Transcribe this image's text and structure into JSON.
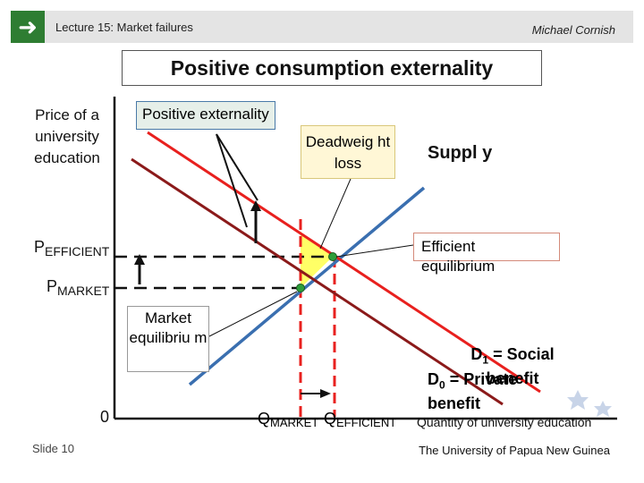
{
  "header": {
    "arrow_icon": "right-arrow-icon",
    "lecture": "Lecture 15:  Market failures",
    "author": "Michael Cornish"
  },
  "slide_title": "Positive consumption externality",
  "diagram": {
    "y_axis_label": "Price of a university education",
    "x_axis_label": "Quantity of university education",
    "origin_label": "0",
    "p_efficient": {
      "main": "P",
      "sub": "EFFICIENT"
    },
    "p_market": {
      "main": "P",
      "sub": "MARKET"
    },
    "q_market": {
      "main": "Q",
      "sub": "MARKET"
    },
    "q_efficient": {
      "main": "Q",
      "sub": "EFFICIENT"
    },
    "callouts": {
      "positive_externality": "Positive externality",
      "deadweight_loss": "Deadweig ht loss",
      "market_equilibrium": "Market equilibriu m",
      "efficient_equilibrium": "Efficient equilibrium",
      "supply": "Suppl y"
    },
    "curves": {
      "d1_prefix": "D",
      "d1_sub": "1",
      "d1_text": " = Social benefit",
      "d0_prefix": "D",
      "d0_sub": "0",
      "d0_text": " = Private benefit"
    },
    "colors": {
      "supply": "#3a6fb0",
      "social_benefit": "#e8201e",
      "private_benefit": "#8b1a1a",
      "deadweight": "#ffff66",
      "equilibrium_point": "#2e9e3a"
    }
  },
  "footer": {
    "slide_number": "Slide 10",
    "institution": "The University of Papua New Guinea"
  }
}
